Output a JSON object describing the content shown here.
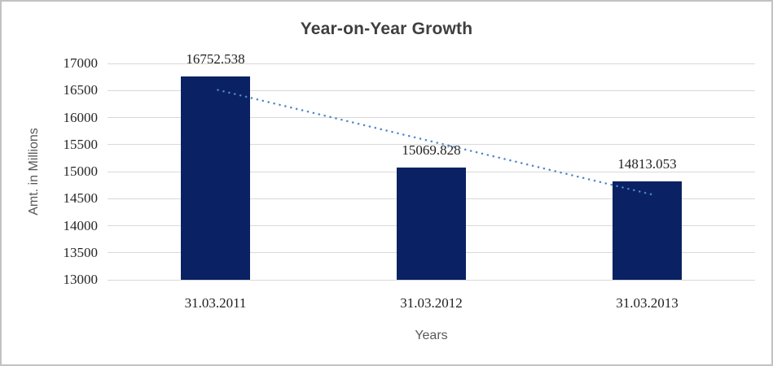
{
  "chart_data": {
    "type": "bar",
    "title": "Year-on-Year Growth",
    "xlabel": "Years",
    "ylabel": "Amt. in Millions",
    "categories": [
      "31.03.2011",
      "31.03.2012",
      "31.03.2013"
    ],
    "values": [
      16752.538,
      15069.828,
      14813.053
    ],
    "data_labels": [
      "16752.538",
      "15069.828",
      "14813.053"
    ],
    "ylim": [
      13000,
      17000
    ],
    "yticks": [
      13000,
      13500,
      14000,
      14500,
      15000,
      15500,
      16000,
      16500,
      17000
    ],
    "grid": true,
    "legend": "none",
    "bar_color": "#0a2263",
    "gridline_color": "#d9d9d9",
    "trendline": {
      "type": "linear",
      "style": "dotted",
      "color": "#4e86c8",
      "start_value": 16510,
      "end_value": 14580
    }
  }
}
